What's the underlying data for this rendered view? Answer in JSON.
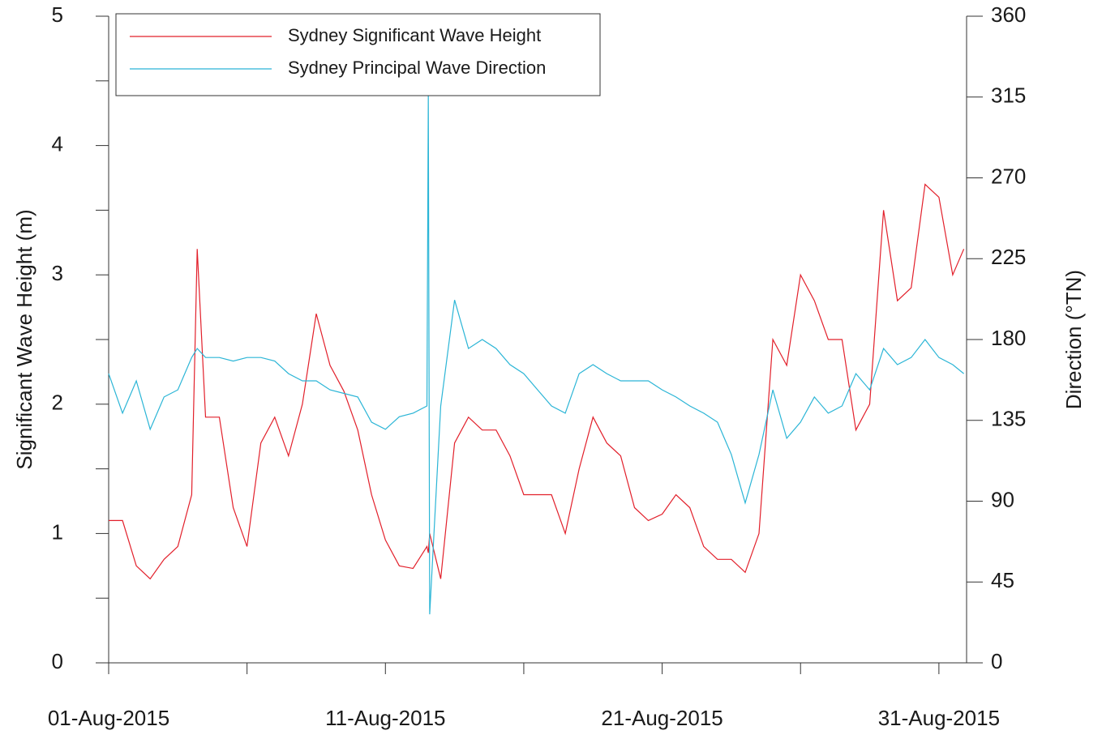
{
  "chart_data": {
    "type": "line",
    "ylabel": "Significant Wave Height (m)",
    "y2label": "Direction (°TN)",
    "x": [
      1,
      1.5,
      2,
      2.5,
      3,
      3.5,
      4,
      4.2,
      4.5,
      5,
      5.5,
      6,
      6.5,
      7,
      7.5,
      8,
      8.5,
      9,
      9.5,
      10,
      10.5,
      11,
      11.5,
      12,
      12.5,
      12.55,
      12.6,
      13,
      13.5,
      14,
      14.5,
      15,
      15.5,
      16,
      16.5,
      17,
      17.5,
      18,
      18.5,
      19,
      19.5,
      20,
      20.5,
      21,
      21.5,
      22,
      22.5,
      23,
      23.5,
      24,
      24.5,
      25,
      25.5,
      26,
      26.5,
      27,
      27.5,
      28,
      28.5,
      29,
      29.5,
      30,
      30.5,
      31,
      31.5,
      31.9
    ],
    "series": [
      {
        "name": "Sydney Significant Wave Height",
        "color": "#e2202b",
        "axis": "y",
        "values": [
          1.1,
          1.1,
          0.75,
          0.65,
          0.8,
          0.9,
          1.3,
          3.2,
          1.9,
          1.9,
          1.2,
          0.9,
          1.7,
          1.9,
          1.6,
          2.0,
          2.7,
          2.3,
          2.1,
          1.8,
          1.3,
          0.95,
          0.75,
          0.73,
          0.9,
          0.85,
          1.0,
          0.65,
          1.7,
          1.9,
          1.8,
          1.8,
          1.6,
          1.3,
          1.3,
          1.3,
          1.0,
          1.5,
          1.9,
          1.7,
          1.6,
          1.2,
          1.1,
          1.15,
          1.3,
          1.2,
          0.9,
          0.8,
          0.8,
          0.7,
          1.0,
          2.5,
          2.3,
          3.0,
          2.8,
          2.5,
          2.5,
          1.8,
          2.0,
          3.5,
          2.8,
          2.9,
          3.7,
          3.6,
          3.0,
          3.2
        ]
      },
      {
        "name": "Sydney Principal Wave Direction",
        "color": "#2bb5d6",
        "axis": "y2",
        "values": [
          161,
          139,
          157,
          130,
          148,
          152,
          170,
          175,
          170,
          170,
          168,
          170,
          170,
          168,
          161,
          157,
          157,
          152,
          150,
          148,
          134,
          130,
          137,
          139,
          143,
          317,
          27,
          143,
          202,
          175,
          180,
          175,
          166,
          161,
          152,
          143,
          139,
          161,
          166,
          161,
          157,
          157,
          157,
          152,
          148,
          143,
          139,
          134,
          116,
          89,
          116,
          152,
          125,
          134,
          148,
          139,
          143,
          161,
          152,
          175,
          166,
          170,
          180,
          170,
          166,
          161
        ]
      }
    ],
    "xlim": [
      1,
      32
    ],
    "xticks": [
      {
        "value": 1,
        "label": "01-Aug-2015"
      },
      {
        "value": 11,
        "label": "11-Aug-2015"
      },
      {
        "value": 21,
        "label": "21-Aug-2015"
      },
      {
        "value": 31,
        "label": "31-Aug-2015"
      }
    ],
    "xminor_ticks": [
      6,
      16,
      26
    ],
    "ylim": [
      0,
      5
    ],
    "yticks": [
      0,
      1,
      2,
      3,
      4,
      5
    ],
    "yminor_ticks": [
      0.5,
      1.5,
      2.5,
      3.5,
      4.5
    ],
    "y2lim": [
      0,
      360
    ],
    "y2ticks": [
      0,
      45,
      90,
      135,
      180,
      225,
      270,
      315,
      360
    ],
    "grid": false,
    "legend": "upper left"
  }
}
